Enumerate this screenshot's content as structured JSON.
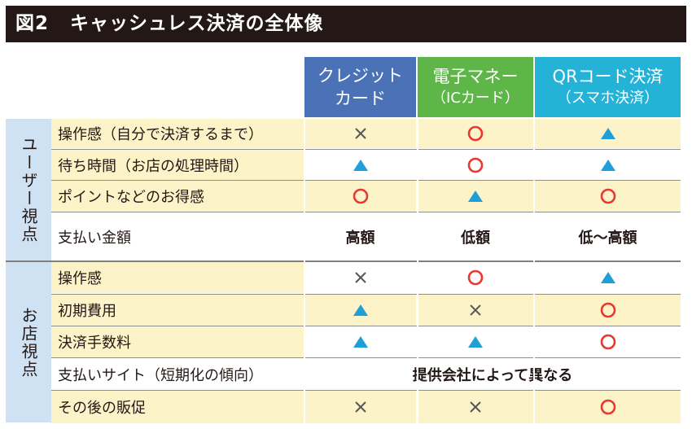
{
  "title": {
    "fig": "図2",
    "text": "キャッシュレス決済の全体像"
  },
  "columns": [
    {
      "line1": "クレジット",
      "line2": "カード",
      "color": "#4b71b7"
    },
    {
      "line1": "電子マネー",
      "line2": "（ICカード）",
      "color": "#5fb648"
    },
    {
      "line1": "QRコード決済",
      "line2": "（スマホ決済）",
      "color": "#24b2d6"
    }
  ],
  "groups": [
    {
      "label": "ユーザー視点"
    },
    {
      "label": "お店視点"
    }
  ],
  "rows": [
    {
      "label": "操作感（自分で決済するまで）",
      "cells": [
        "cross",
        "circle",
        "triangle"
      ]
    },
    {
      "label": "待ち時間（お店の処理時間）",
      "cells": [
        "triangle",
        "circle",
        "triangle"
      ]
    },
    {
      "label": "ポイントなどのお得感",
      "cells": [
        "circle",
        "triangle",
        "circle"
      ]
    },
    {
      "label": "支払い金額",
      "cells": [
        "高額",
        "低額",
        "低～高額"
      ]
    },
    {
      "label": "操作感",
      "cells": [
        "cross",
        "circle",
        "triangle"
      ]
    },
    {
      "label": "初期費用",
      "cells": [
        "triangle",
        "cross",
        "circle"
      ]
    },
    {
      "label": "決済手数料",
      "cells": [
        "triangle",
        "triangle",
        "circle"
      ]
    },
    {
      "label": "支払いサイト（短期化の傾向）",
      "span": "提供会社によって異なる"
    },
    {
      "label": "その後の販促",
      "cells": [
        "cross",
        "cross",
        "circle"
      ]
    }
  ],
  "symbol_colors": {
    "circle": "#e8382f",
    "triangle": "#1f9fd8",
    "cross": "#595757"
  }
}
